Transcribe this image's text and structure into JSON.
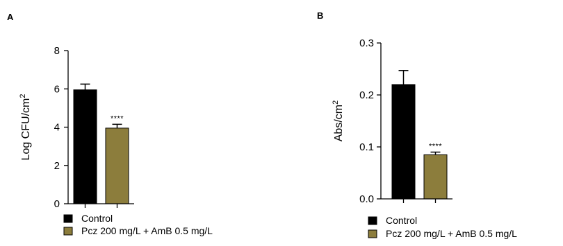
{
  "chart_data": [
    {
      "type": "bar",
      "panel": "A",
      "ylabel": "Log CFU/cm",
      "ylabel_sup": "2",
      "ylim": [
        0,
        8
      ],
      "yticks": [
        0,
        2,
        4,
        6,
        8
      ],
      "tick_labels": [
        "0",
        "2",
        "4",
        "6",
        "8"
      ],
      "categories": [
        "Control",
        "Pcz 200 mg/L + AmB 0.5 mg/L"
      ],
      "values": [
        5.95,
        3.95
      ],
      "errors": [
        0.3,
        0.2
      ],
      "colors": [
        "#000000",
        "#8c7d3c"
      ],
      "significance": [
        "",
        "****"
      ],
      "legend": [
        "Control",
        "Pcz 200 mg/L + AmB 0.5 mg/L"
      ],
      "legend_position": "bottom",
      "grid": false
    },
    {
      "type": "bar",
      "panel": "B",
      "ylabel": "Abs/cm",
      "ylabel_sup": "2",
      "ylim": [
        0,
        0.3
      ],
      "yticks": [
        0,
        0.1,
        0.2,
        0.3
      ],
      "tick_labels": [
        "0.0",
        "0.1",
        "0.2",
        "0.3"
      ],
      "categories": [
        "Control",
        "Pcz 200 mg/L + AmB 0.5 mg/L"
      ],
      "values": [
        0.22,
        0.085
      ],
      "errors": [
        0.027,
        0.005
      ],
      "colors": [
        "#000000",
        "#8c7d3c"
      ],
      "significance": [
        "",
        "****"
      ],
      "legend": [
        "Control",
        "Pcz 200 mg/L + AmB 0.5 mg/L"
      ],
      "legend_position": "bottom",
      "grid": false
    }
  ]
}
